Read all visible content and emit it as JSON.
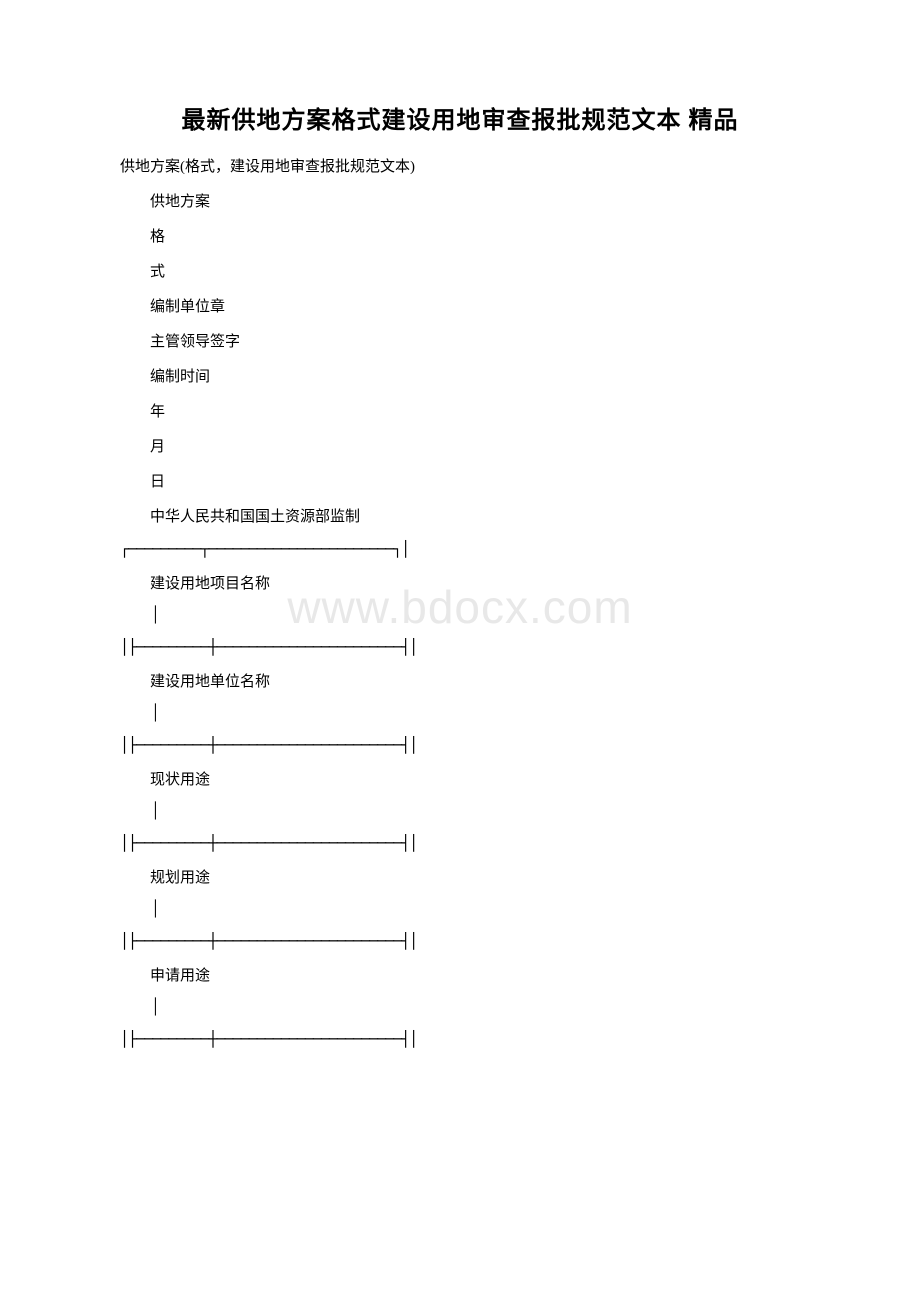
{
  "document": {
    "title": "最新供地方案格式建设用地审查报批规范文本 精品",
    "subtitle": "供地方案(格式，建设用地审查报批规范文本)",
    "header_lines": [
      "供地方案",
      "格",
      "式",
      "编制单位章",
      "主管领导签字",
      "编制时间",
      "年",
      "月",
      "日",
      "中华人民共和国国土资源部监制"
    ],
    "divider_top": "┌─────────┬───────────────────────┐│",
    "form_fields": [
      {
        "label": "建设用地项目名称",
        "bar": "│",
        "divider": "│├─────────┼───────────────────────┤│"
      },
      {
        "label": "建设用地单位名称",
        "bar": "│",
        "divider": "│├─────────┼───────────────────────┤│"
      },
      {
        "label": "现状用途",
        "bar": "│",
        "divider": "│├─────────┼───────────────────────┤│"
      },
      {
        "label": "规划用途",
        "bar": "│",
        "divider": "│├─────────┼───────────────────────┤│"
      },
      {
        "label": "申请用途",
        "bar": "│",
        "divider": "│├─────────┼───────────────────────┤│"
      }
    ],
    "watermark": "www.bdocx.com",
    "colors": {
      "text": "#000000",
      "background": "#ffffff",
      "watermark": "#e8e8e8"
    },
    "typography": {
      "title_fontsize": 24,
      "body_fontsize": 15,
      "watermark_fontsize": 46,
      "font_family": "SimSun"
    }
  }
}
